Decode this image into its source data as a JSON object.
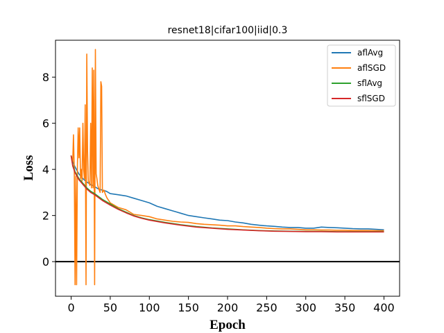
{
  "chart_data": {
    "type": "line",
    "title": "resnet18|cifar100|iid|0.3",
    "xlabel": "Epoch",
    "ylabel": "Loss",
    "xlim": [
      -20,
      420
    ],
    "ylim": [
      -1.5,
      9.6
    ],
    "xticks": [
      0,
      50,
      100,
      150,
      200,
      250,
      300,
      350,
      400
    ],
    "yticks": [
      0,
      2,
      4,
      6,
      8
    ],
    "hline": 0,
    "grid": false,
    "legend_position": "top-right",
    "series": [
      {
        "name": "aflAvg",
        "color": "#1f77b4",
        "x": [
          0,
          2,
          5,
          10,
          15,
          20,
          25,
          30,
          35,
          40,
          45,
          50,
          60,
          70,
          80,
          90,
          100,
          110,
          120,
          130,
          140,
          150,
          160,
          170,
          180,
          190,
          200,
          210,
          220,
          230,
          240,
          250,
          260,
          270,
          280,
          290,
          300,
          310,
          320,
          330,
          340,
          350,
          360,
          370,
          380,
          390,
          400
        ],
        "y": [
          4.6,
          4.35,
          4.1,
          3.8,
          3.6,
          3.45,
          3.35,
          3.25,
          3.15,
          3.1,
          3.05,
          2.95,
          2.9,
          2.85,
          2.75,
          2.65,
          2.55,
          2.4,
          2.3,
          2.2,
          2.1,
          2.0,
          1.95,
          1.9,
          1.85,
          1.8,
          1.78,
          1.72,
          1.68,
          1.62,
          1.58,
          1.55,
          1.53,
          1.5,
          1.48,
          1.48,
          1.45,
          1.45,
          1.5,
          1.48,
          1.47,
          1.45,
          1.43,
          1.42,
          1.42,
          1.4,
          1.38
        ]
      },
      {
        "name": "aflSGD",
        "color": "#ff7f0e",
        "x": [
          0,
          2,
          3,
          4,
          5,
          6,
          7,
          8,
          9,
          10,
          11,
          12,
          13,
          14,
          15,
          16,
          17,
          18,
          19,
          20,
          21,
          22,
          23,
          24,
          25,
          26,
          27,
          28,
          29,
          30,
          31,
          32,
          33,
          34,
          35,
          36,
          37,
          38,
          39,
          40,
          42,
          44,
          46,
          48,
          50,
          60,
          70,
          80,
          90,
          100,
          110,
          120,
          130,
          140,
          150,
          160,
          170,
          180,
          190,
          200,
          210,
          220,
          230,
          240,
          250,
          260,
          270,
          280,
          290,
          300,
          310,
          320,
          330,
          340,
          350,
          360,
          370,
          380,
          390,
          400
        ],
        "y": [
          4.6,
          4.3,
          5.5,
          3.9,
          -1.0,
          3.7,
          -1.0,
          4.2,
          5.8,
          4.5,
          5.8,
          3.6,
          4.0,
          3.5,
          6.0,
          4.0,
          3.6,
          6.8,
          -1.0,
          9.0,
          4.8,
          3.5,
          3.4,
          3.3,
          6.0,
          3.2,
          8.4,
          3.2,
          8.3,
          -1.0,
          9.2,
          3.8,
          3.6,
          3.3,
          3.2,
          3.1,
          3.0,
          7.8,
          7.6,
          3.0,
          3.1,
          2.9,
          2.75,
          2.65,
          2.55,
          2.35,
          2.25,
          2.05,
          2.0,
          1.95,
          1.85,
          1.8,
          1.75,
          1.72,
          1.7,
          1.65,
          1.62,
          1.6,
          1.58,
          1.55,
          1.55,
          1.52,
          1.5,
          1.48,
          1.45,
          1.43,
          1.42,
          1.42,
          1.4,
          1.38,
          1.38,
          1.37,
          1.37,
          1.36,
          1.36,
          1.35,
          1.35,
          1.35,
          1.34,
          1.34
        ]
      },
      {
        "name": "sflAvg",
        "color": "#2ca02c",
        "x": [
          0,
          2,
          5,
          10,
          15,
          20,
          25,
          30,
          40,
          50,
          60,
          70,
          80,
          90,
          100,
          120,
          140,
          160,
          180,
          200,
          220,
          240,
          260,
          280,
          300,
          320,
          340,
          360,
          380,
          400
        ],
        "y": [
          4.6,
          4.2,
          3.9,
          3.6,
          3.4,
          3.2,
          3.05,
          2.95,
          2.7,
          2.5,
          2.3,
          2.15,
          2.0,
          1.9,
          1.82,
          1.7,
          1.6,
          1.52,
          1.46,
          1.42,
          1.38,
          1.35,
          1.33,
          1.32,
          1.31,
          1.31,
          1.3,
          1.3,
          1.3,
          1.3
        ]
      },
      {
        "name": "sflSGD",
        "color": "#d62728",
        "x": [
          0,
          2,
          5,
          10,
          15,
          20,
          25,
          30,
          40,
          50,
          60,
          70,
          80,
          90,
          100,
          120,
          140,
          160,
          180,
          200,
          220,
          240,
          260,
          280,
          300,
          320,
          340,
          360,
          380,
          400
        ],
        "y": [
          4.6,
          4.15,
          3.85,
          3.55,
          3.35,
          3.15,
          3.0,
          2.9,
          2.65,
          2.45,
          2.27,
          2.12,
          1.98,
          1.88,
          1.8,
          1.68,
          1.58,
          1.5,
          1.45,
          1.4,
          1.37,
          1.34,
          1.32,
          1.31,
          1.3,
          1.3,
          1.29,
          1.29,
          1.29,
          1.29
        ]
      }
    ]
  }
}
